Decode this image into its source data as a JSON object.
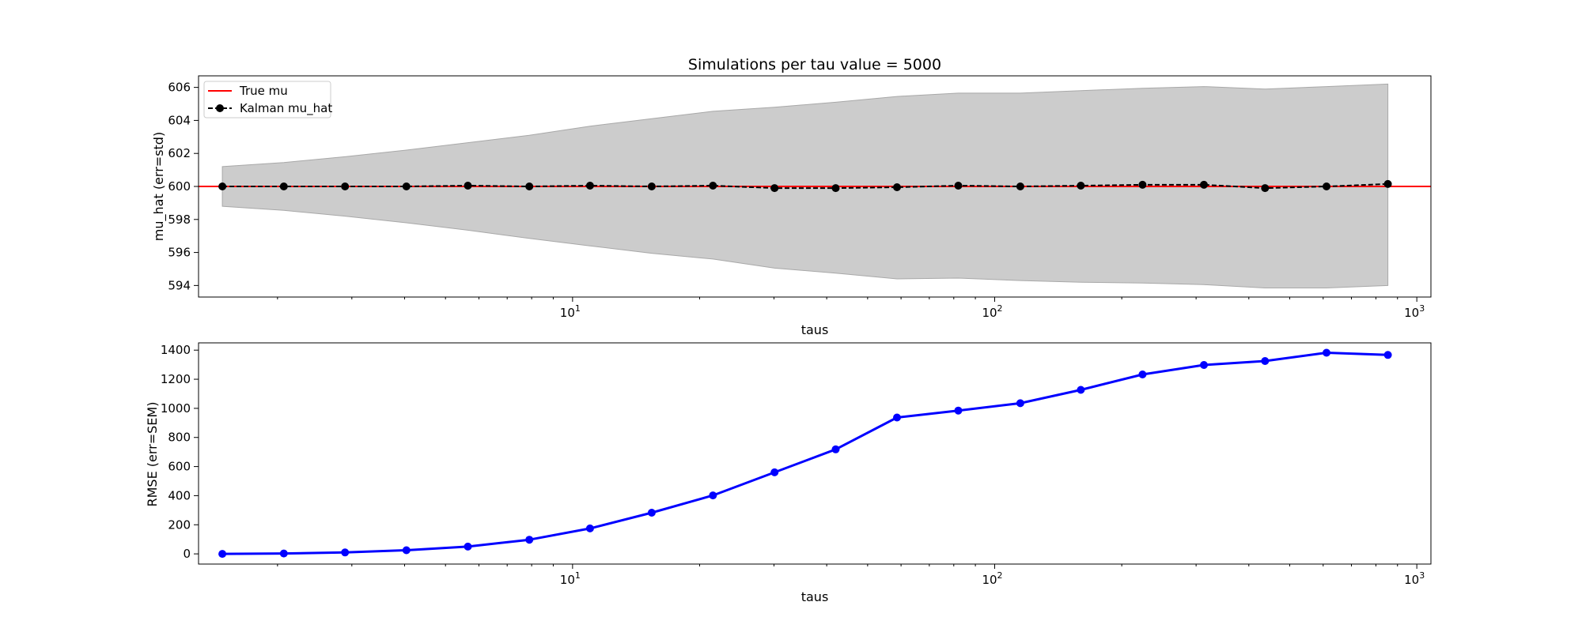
{
  "chart_data": [
    {
      "type": "line",
      "title": "Simulations per tau value = 5000",
      "xlabel": "taus",
      "ylabel": "mu_hat (err=std)",
      "xscale": "log",
      "xlim": [
        1.3,
        1080
      ],
      "ylim": [
        593.3,
        606.7
      ],
      "x_tick_labels": [
        {
          "value": 10,
          "base": "10",
          "exp": "1"
        },
        {
          "value": 100,
          "base": "10",
          "exp": "2"
        },
        {
          "value": 1000,
          "base": "10",
          "exp": "3"
        }
      ],
      "y_ticks": [
        594,
        596,
        598,
        600,
        602,
        604,
        606
      ],
      "grid": false,
      "legend_position": "upper left",
      "x": [
        1.48,
        2.07,
        2.89,
        4.04,
        5.65,
        7.9,
        11.0,
        15.4,
        21.5,
        30.1,
        42.0,
        58.7,
        82.0,
        115,
        160,
        224,
        313,
        437,
        611,
        854
      ],
      "series": [
        {
          "name": "True mu",
          "style": "solid-line",
          "color": "#ff0000",
          "constant": 600
        },
        {
          "name": "Kalman mu_hat",
          "style": "dashed-line-with-markers",
          "color": "#000000",
          "values": [
            600.0,
            600.0,
            600.0,
            600.0,
            600.05,
            600.0,
            600.05,
            600.0,
            600.05,
            599.9,
            599.9,
            599.95,
            600.05,
            600.0,
            600.05,
            600.1,
            600.1,
            599.9,
            600.0,
            600.15
          ]
        },
        {
          "name": "std band",
          "style": "shaded-area",
          "color": "#cccccc",
          "upper": [
            601.2,
            601.45,
            601.8,
            602.2,
            602.65,
            603.1,
            603.65,
            604.1,
            604.55,
            604.8,
            605.1,
            605.45,
            605.65,
            605.65,
            605.8,
            605.95,
            606.05,
            605.9,
            606.05,
            606.2
          ],
          "lower": [
            598.8,
            598.55,
            598.2,
            597.8,
            597.35,
            596.85,
            596.4,
            595.95,
            595.6,
            595.05,
            594.75,
            594.4,
            594.45,
            594.3,
            594.2,
            594.15,
            594.05,
            593.85,
            593.85,
            594.0
          ]
        }
      ]
    },
    {
      "type": "line",
      "title": "",
      "xlabel": "taus",
      "ylabel": "RMSE (err=SEM)",
      "xscale": "log",
      "xlim": [
        1.3,
        1080
      ],
      "ylim": [
        -70,
        1450
      ],
      "x_tick_labels": [
        {
          "value": 10,
          "base": "10",
          "exp": "1"
        },
        {
          "value": 100,
          "base": "10",
          "exp": "2"
        },
        {
          "value": 1000,
          "base": "10",
          "exp": "3"
        }
      ],
      "y_ticks": [
        0,
        200,
        400,
        600,
        800,
        1000,
        1200,
        1400
      ],
      "grid": false,
      "x": [
        1.48,
        2.07,
        2.89,
        4.04,
        5.65,
        7.9,
        11.0,
        15.4,
        21.5,
        30.1,
        42.0,
        58.7,
        82.0,
        115,
        160,
        224,
        313,
        437,
        611,
        854
      ],
      "series": [
        {
          "name": "",
          "style": "solid-line-with-markers",
          "color": "#0000ff",
          "values": [
            0,
            3,
            10,
            25,
            50,
            97,
            175,
            283,
            402,
            560,
            718,
            937,
            985,
            1035,
            1127,
            1233,
            1298,
            1325,
            1382,
            1367
          ]
        }
      ]
    }
  ]
}
